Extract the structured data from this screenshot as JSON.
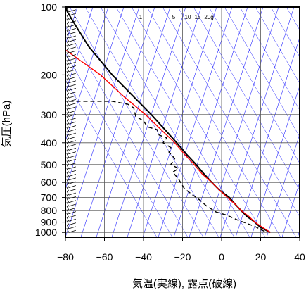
{
  "chart_data": {
    "type": "line",
    "title": "",
    "xlabel": "気温(実線), 露点(破線)",
    "ylabel": "気圧(hPa)",
    "x_axis": {
      "min": -80,
      "max": 40,
      "ticks": [
        "−80",
        "−60",
        "−40",
        "−20",
        "0",
        "20",
        "40"
      ]
    },
    "y_axis": {
      "min": 1050,
      "max": 100,
      "scale": "log",
      "ticks": [
        "100",
        "200",
        "300",
        "400",
        "500",
        "600",
        "700",
        "800",
        "900",
        "1000"
      ]
    },
    "mixing_ratio_labels": [
      "1",
      "5",
      "10",
      "15",
      "20g"
    ],
    "grid": true,
    "colors": {
      "temperature": "#000000",
      "parcel": "#ff0000",
      "dewpoint": "#000000",
      "background_lines": "#2a2aff",
      "grid": "#555555"
    },
    "series": [
      {
        "role": "temperature",
        "style": "solid",
        "points": [
          [
            25,
            1000
          ],
          [
            20,
            950
          ],
          [
            17,
            900
          ],
          [
            13,
            850
          ],
          [
            10,
            800
          ],
          [
            7,
            750
          ],
          [
            4,
            700
          ],
          [
            -1,
            650
          ],
          [
            -5,
            600
          ],
          [
            -9,
            550
          ],
          [
            -13,
            500
          ],
          [
            -18,
            450
          ],
          [
            -23,
            400
          ],
          [
            -29,
            350
          ],
          [
            -36,
            300
          ],
          [
            -45,
            250
          ],
          [
            -56,
            200
          ],
          [
            -68,
            150
          ],
          [
            -75,
            120
          ],
          [
            -79,
            105
          ],
          [
            -80,
            100
          ]
        ]
      },
      {
        "role": "parcel",
        "style": "solid",
        "points": [
          [
            25,
            1000
          ],
          [
            21,
            950
          ],
          [
            17,
            900
          ],
          [
            14,
            850
          ],
          [
            10,
            800
          ],
          [
            7,
            750
          ],
          [
            3,
            700
          ],
          [
            -1,
            650
          ],
          [
            -5,
            600
          ],
          [
            -10,
            550
          ],
          [
            -14,
            500
          ],
          [
            -19,
            450
          ],
          [
            -24,
            400
          ],
          [
            -31,
            350
          ],
          [
            -39,
            300
          ],
          [
            -50,
            250
          ],
          [
            -62,
            200
          ],
          [
            -80,
            155
          ]
        ]
      },
      {
        "role": "dewpoint",
        "style": "dashed",
        "points": [
          [
            22,
            990
          ],
          [
            17,
            940
          ],
          [
            8,
            880
          ],
          [
            3,
            840
          ],
          [
            -3,
            810
          ],
          [
            -8,
            760
          ],
          [
            -11,
            720
          ],
          [
            -15,
            680
          ],
          [
            -19,
            640
          ],
          [
            -22,
            580
          ],
          [
            -25,
            540
          ],
          [
            -22,
            520
          ],
          [
            -26,
            500
          ],
          [
            -24,
            470
          ],
          [
            -27,
            440
          ],
          [
            -26,
            420
          ],
          [
            -30,
            400
          ],
          [
            -28,
            380
          ],
          [
            -32,
            370
          ],
          [
            -33,
            350
          ],
          [
            -38,
            340
          ],
          [
            -40,
            320
          ],
          [
            -44,
            305
          ],
          [
            -45,
            280
          ],
          [
            -48,
            270
          ],
          [
            -56,
            262
          ],
          [
            -80,
            262
          ]
        ]
      }
    ],
    "wind_barbs": {
      "count": 60,
      "x_position_temp": -75
    }
  }
}
